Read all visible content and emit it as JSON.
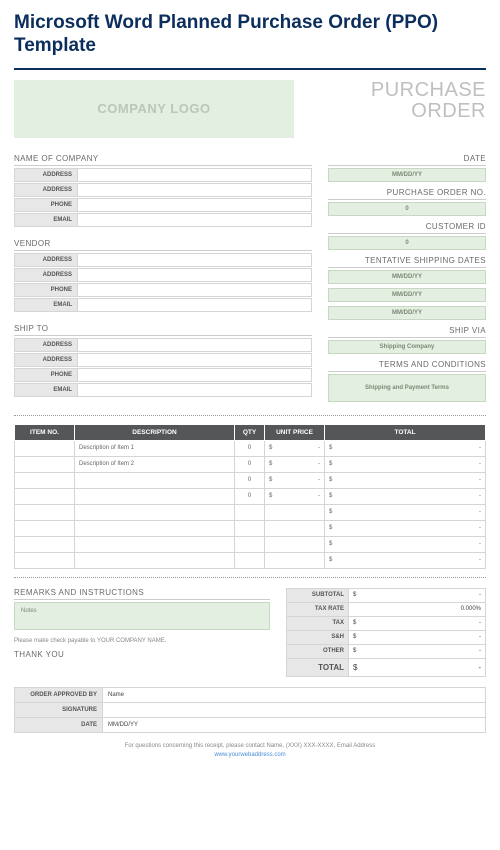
{
  "page_title": "Microsoft Word Planned Purchase Order (PPO) Template",
  "logo_text": "COMPANY LOGO",
  "po_heading_line1": "PURCHASE",
  "po_heading_line2": "ORDER",
  "colors": {
    "title": "#0b2e5c",
    "green_bg": "#e3efe0",
    "green_border": "#c9d8c5",
    "gray_bg": "#e7e7e7",
    "header_bg": "#555658",
    "border": "#d5d5d5",
    "link": "#4a8cd6"
  },
  "left_sections": [
    {
      "title": "NAME OF COMPANY",
      "fields": [
        {
          "label": "ADDRESS",
          "value": ""
        },
        {
          "label": "ADDRESS",
          "value": ""
        },
        {
          "label": "PHONE",
          "value": ""
        },
        {
          "label": "EMAIL",
          "value": ""
        }
      ]
    },
    {
      "title": "VENDOR",
      "fields": [
        {
          "label": "ADDRESS",
          "value": ""
        },
        {
          "label": "ADDRESS",
          "value": ""
        },
        {
          "label": "PHONE",
          "value": ""
        },
        {
          "label": "EMAIL",
          "value": ""
        }
      ]
    },
    {
      "title": "SHIP TO",
      "fields": [
        {
          "label": "ADDRESS",
          "value": ""
        },
        {
          "label": "ADDRESS",
          "value": ""
        },
        {
          "label": "PHONE",
          "value": ""
        },
        {
          "label": "EMAIL",
          "value": ""
        }
      ]
    }
  ],
  "right_sections": [
    {
      "title": "DATE",
      "boxes": [
        "MM/DD/YY"
      ]
    },
    {
      "title": "PURCHASE ORDER NO.",
      "boxes": [
        "0"
      ]
    },
    {
      "title": "CUSTOMER ID",
      "boxes": [
        "0"
      ]
    },
    {
      "title": "TENTATIVE SHIPPING DATES",
      "boxes": [
        "MM/DD/YY",
        "MM/DD/YY",
        "MM/DD/YY"
      ]
    },
    {
      "title": "SHIP VIA",
      "boxes": [
        "Shipping Company"
      ]
    },
    {
      "title": "TERMS AND CONDITIONS",
      "boxes": [
        "Shipping and Payment Terms"
      ],
      "tall": true
    }
  ],
  "items_table": {
    "headers": [
      "ITEM NO.",
      "DESCRIPTION",
      "QTY",
      "UNIT PRICE",
      "TOTAL"
    ],
    "rows": [
      {
        "item": "",
        "desc": "Description of Item 1",
        "qty": "0",
        "up": [
          "$",
          "-"
        ],
        "tot": [
          "$",
          "-"
        ]
      },
      {
        "item": "",
        "desc": "Description of Item 2",
        "qty": "0",
        "up": [
          "$",
          "-"
        ],
        "tot": [
          "$",
          "-"
        ]
      },
      {
        "item": "",
        "desc": "",
        "qty": "0",
        "up": [
          "$",
          "-"
        ],
        "tot": [
          "$",
          "-"
        ]
      },
      {
        "item": "",
        "desc": "",
        "qty": "0",
        "up": [
          "$",
          "-"
        ],
        "tot": [
          "$",
          "-"
        ]
      },
      {
        "item": "",
        "desc": "",
        "qty": "",
        "up": [
          "",
          ""
        ],
        "tot": [
          "$",
          "-"
        ]
      },
      {
        "item": "",
        "desc": "",
        "qty": "",
        "up": [
          "",
          ""
        ],
        "tot": [
          "$",
          "-"
        ]
      },
      {
        "item": "",
        "desc": "",
        "qty": "",
        "up": [
          "",
          ""
        ],
        "tot": [
          "$",
          "-"
        ]
      },
      {
        "item": "",
        "desc": "",
        "qty": "",
        "up": [
          "",
          ""
        ],
        "tot": [
          "$",
          "-"
        ]
      }
    ]
  },
  "remarks": {
    "title": "REMARKS AND INSTRUCTIONS",
    "notes": "Notes",
    "payable": "Please make check payable to YOUR COMPANY NAME.",
    "thank": "THANK YOU"
  },
  "totals": [
    {
      "label": "SUBTOTAL",
      "value": [
        "$",
        "-"
      ]
    },
    {
      "label": "TAX RATE",
      "value": [
        "",
        "0.000%"
      ]
    },
    {
      "label": "TAX",
      "value": [
        "$",
        "-"
      ]
    },
    {
      "label": "S&H",
      "value": [
        "$",
        "-"
      ]
    },
    {
      "label": "OTHER",
      "value": [
        "$",
        "-"
      ]
    },
    {
      "label": "TOTAL",
      "value": [
        "$",
        "-"
      ],
      "big": true
    }
  ],
  "approval": [
    {
      "label": "ORDER APPROVED BY",
      "value": "Name"
    },
    {
      "label": "SIGNATURE",
      "value": ""
    },
    {
      "label": "DATE",
      "value": "MM/DD/YY"
    }
  ],
  "footer": {
    "note": "For questions concerning this receipt, please contact Name, (XXX) XXX-XXXX, Email Address",
    "link": "www.yourwebaddress.com"
  }
}
